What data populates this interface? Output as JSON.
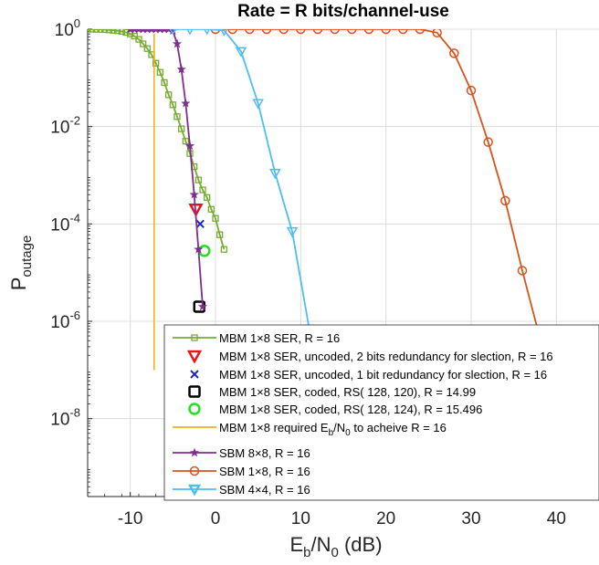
{
  "chart_data": {
    "type": "line",
    "title": "Rate = R bits/channel-use",
    "xlabel": {
      "main": "E",
      "sub1": "b",
      "mid": "/N",
      "sub2": "0",
      "tail": " (dB)"
    },
    "ylabel": {
      "main": "P",
      "sub": "outage"
    },
    "xlim": [
      -15,
      45
    ],
    "ylim_log10": [
      -9.6,
      0
    ],
    "y_scale": "log",
    "grid": true,
    "legend_position": "bottom-right",
    "x_ticks": [
      -10,
      0,
      10,
      20,
      30,
      40
    ],
    "x_tick_labels": [
      "-10",
      "0",
      "10",
      "20",
      "30",
      "40"
    ],
    "y_ticks": [
      {
        "base": "10",
        "exp": "0",
        "value": 0
      },
      {
        "base": "10",
        "exp": "-2",
        "value": -2
      },
      {
        "base": "10",
        "exp": "-4",
        "value": -4
      },
      {
        "base": "10",
        "exp": "-6",
        "value": -6
      },
      {
        "base": "10",
        "exp": "-8",
        "value": -8
      }
    ],
    "series": [
      {
        "name": "MBM 1×8 SER, R = 16",
        "color": "#77AC30",
        "marker": "square",
        "line": true,
        "x": [
          -15,
          -14.5,
          -14,
          -13.5,
          -13,
          -12.5,
          -12,
          -11.5,
          -11,
          -10.5,
          -10,
          -9.5,
          -9,
          -8.5,
          -8,
          -7.5,
          -7,
          -6.5,
          -6,
          -5.5,
          -5,
          -4.5,
          -4,
          -3.5,
          -3,
          -2.5,
          -2,
          -1.5,
          -1,
          -0.5,
          0,
          0.5,
          1
        ],
        "y": [
          1,
          1,
          0.995,
          0.99,
          0.98,
          0.97,
          0.95,
          0.93,
          0.9,
          0.86,
          0.8,
          0.72,
          0.62,
          0.5,
          0.4,
          0.3,
          0.2,
          0.13,
          0.08,
          0.045,
          0.028,
          0.016,
          0.009,
          0.005,
          0.0028,
          0.0015,
          0.0008,
          0.0005,
          0.00035,
          0.0002,
          0.00013,
          6e-05,
          3e-05
        ]
      },
      {
        "name": "MBM 1×8 SER, uncoded, 2 bits redundancy for slection, R = 16",
        "color": "#E8141A",
        "marker": "triangle-down",
        "line": false,
        "x": [
          -2.3
        ],
        "y": [
          0.0002
        ]
      },
      {
        "name": "MBM 1×8 SER, uncoded, 1 bit redundancy for slection, R = 16",
        "color": "#1F24C8",
        "marker": "x",
        "line": false,
        "x": [
          -1.8
        ],
        "y": [
          0.0001
        ]
      },
      {
        "name": "MBM 1×8 SER, coded,  RS( 128, 120), R = 14.99",
        "color": "#000000",
        "marker": "square-large",
        "line": false,
        "x": [
          -1.9
        ],
        "y": [
          2e-06
        ]
      },
      {
        "name": "MBM 1×8 SER, coded,  RS( 128, 124), R = 15.496",
        "color": "#22E01C",
        "marker": "circle-large",
        "line": false,
        "x": [
          -1.3
        ],
        "y": [
          2.8e-05
        ]
      },
      {
        "name": "MBM 1×8 required E_b/N_0 to acheive R = 16",
        "legend": {
          "a": "MBM 1×8 required E",
          "b": "b",
          "c": "/N",
          "d": "0",
          "e": " to acheive R = 16"
        },
        "color": "#EDB120",
        "marker": "none",
        "line": true,
        "x": [
          -7.2,
          -7.2
        ],
        "y": [
          0.8,
          1e-07
        ]
      },
      {
        "name": "SBM 8×8, R = 16",
        "color": "#7E2F8E",
        "marker": "star",
        "line": true,
        "x": [
          -10,
          -9.5,
          -9,
          -8.5,
          -8,
          -7.5,
          -7,
          -6.5,
          -6,
          -5.5,
          -5,
          -4.5,
          -4,
          -3.5,
          -3,
          -2.5,
          -2,
          -1.5
        ],
        "y": [
          1,
          1,
          1,
          1,
          1,
          1,
          1,
          1,
          1,
          1,
          0.93,
          0.5,
          0.15,
          0.03,
          0.004,
          0.0004,
          3e-05,
          2e-06
        ]
      },
      {
        "name": "SBM 1×8, R = 16",
        "color": "#D95319",
        "marker": "circle",
        "line": true,
        "x": [
          0,
          2,
          4,
          6,
          8,
          10,
          12,
          14,
          16,
          18,
          20,
          22,
          24,
          26,
          28,
          30,
          32,
          34,
          36,
          38
        ],
        "y": [
          1,
          1,
          1,
          1,
          1,
          1,
          1,
          1,
          1,
          1,
          1,
          1,
          1,
          0.85,
          0.32,
          0.055,
          0.0048,
          0.0003,
          1.1e-05,
          5e-07
        ]
      },
      {
        "name": "SBM 4×4, R = 16",
        "color": "#4DBEEE",
        "marker": "triangle-down",
        "line": true,
        "x": [
          -5,
          -3,
          -1,
          1,
          3,
          5,
          7,
          9,
          11
        ],
        "y": [
          1,
          1,
          1,
          0.95,
          0.35,
          0.03,
          0.0011,
          7e-05,
          7e-07
        ]
      }
    ]
  }
}
